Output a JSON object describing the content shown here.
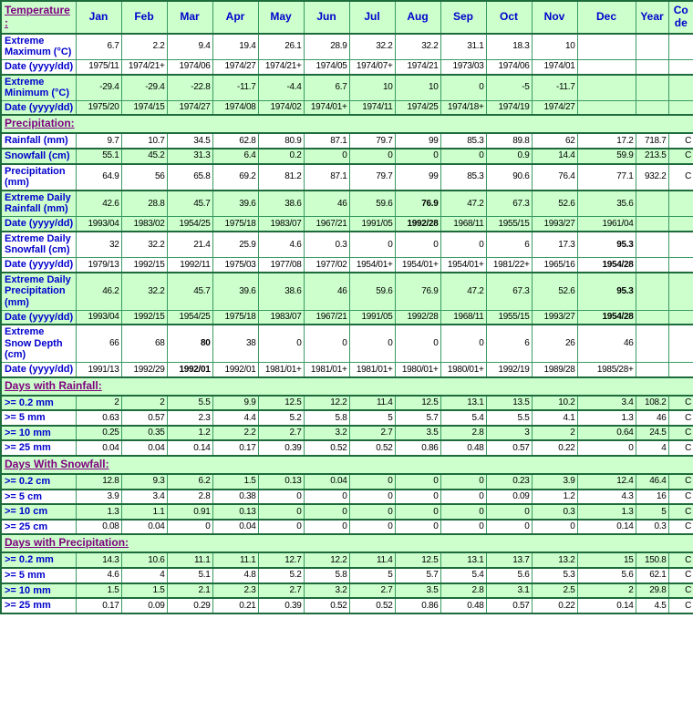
{
  "table": {
    "corner_label": "Temperature:",
    "columns": [
      "Jan",
      "Feb",
      "Mar",
      "Apr",
      "May",
      "Jun",
      "Jul",
      "Aug",
      "Sep",
      "Oct",
      "Nov",
      "Dec",
      "Year",
      "Code"
    ],
    "colors": {
      "grid": "#3a9a63",
      "section_border": "#1d6b3c",
      "row_shade_green": "#ccffcc",
      "label_blue": "#0000cc",
      "section_purple": "#800080"
    },
    "sections": [
      {
        "id": "temperature",
        "rows": [
          {
            "label": "Extreme Maximum (°C)",
            "shade": "white",
            "date_row": false,
            "bold": [],
            "values": [
              "6.7",
              "2.2",
              "9.4",
              "19.4",
              "26.1",
              "28.9",
              "32.2",
              "32.2",
              "31.1",
              "18.3",
              "10",
              "",
              "",
              ""
            ]
          },
          {
            "label": "Date (yyyy/dd)",
            "shade": "white",
            "date_row": true,
            "bold": [],
            "values": [
              "1975/11",
              "1974/21+",
              "1974/06",
              "1974/27",
              "1974/21+",
              "1974/05",
              "1974/07+",
              "1974/21",
              "1973/03",
              "1974/06",
              "1974/01",
              "",
              "",
              ""
            ]
          },
          {
            "label": "Extreme Minimum (°C)",
            "shade": "green",
            "date_row": false,
            "bold": [],
            "values": [
              "-29.4",
              "-29.4",
              "-22.8",
              "-11.7",
              "-4.4",
              "6.7",
              "10",
              "10",
              "0",
              "-5",
              "-11.7",
              "",
              "",
              ""
            ]
          },
          {
            "label": "Date (yyyy/dd)",
            "shade": "green",
            "date_row": true,
            "bold": [],
            "values": [
              "1975/20",
              "1974/15",
              "1974/27",
              "1974/08",
              "1974/02",
              "1974/01+",
              "1974/11",
              "1974/25",
              "1974/18+",
              "1974/19",
              "1974/27",
              "",
              "",
              ""
            ]
          }
        ]
      },
      {
        "id": "precipitation",
        "header": "Precipitation:",
        "rows": [
          {
            "label": "Rainfall (mm)",
            "shade": "white",
            "date_row": false,
            "bold": [],
            "values": [
              "9.7",
              "10.7",
              "34.5",
              "62.8",
              "80.9",
              "87.1",
              "79.7",
              "99",
              "85.3",
              "89.8",
              "62",
              "17.2",
              "718.7",
              "C"
            ]
          },
          {
            "label": "Snowfall (cm)",
            "shade": "green",
            "date_row": false,
            "bold": [],
            "values": [
              "55.1",
              "45.2",
              "31.3",
              "6.4",
              "0.2",
              "0",
              "0",
              "0",
              "0",
              "0.9",
              "14.4",
              "59.9",
              "213.5",
              "C"
            ]
          },
          {
            "label": "Precipitation (mm)",
            "shade": "white",
            "date_row": false,
            "bold": [],
            "values": [
              "64.9",
              "56",
              "65.8",
              "69.2",
              "81.2",
              "87.1",
              "79.7",
              "99",
              "85.3",
              "90.6",
              "76.4",
              "77.1",
              "932.2",
              "C"
            ]
          },
          {
            "label": "Extreme Daily Rainfall (mm)",
            "shade": "green",
            "date_row": false,
            "bold": [
              7
            ],
            "values": [
              "42.6",
              "28.8",
              "45.7",
              "39.6",
              "38.6",
              "46",
              "59.6",
              "76.9",
              "47.2",
              "67.3",
              "52.6",
              "35.6",
              "",
              ""
            ]
          },
          {
            "label": "Date (yyyy/dd)",
            "shade": "green",
            "date_row": true,
            "bold": [
              7
            ],
            "values": [
              "1993/04",
              "1983/02",
              "1954/25",
              "1975/18",
              "1983/07",
              "1967/21",
              "1991/05",
              "1992/28",
              "1968/11",
              "1955/15",
              "1993/27",
              "1961/04",
              "",
              ""
            ]
          },
          {
            "label": "Extreme Daily Snowfall (cm)",
            "shade": "white",
            "date_row": false,
            "bold": [
              11
            ],
            "values": [
              "32",
              "32.2",
              "21.4",
              "25.9",
              "4.6",
              "0.3",
              "0",
              "0",
              "0",
              "6",
              "17.3",
              "95.3",
              "",
              ""
            ]
          },
          {
            "label": "Date (yyyy/dd)",
            "shade": "white",
            "date_row": true,
            "bold": [
              11
            ],
            "values": [
              "1979/13",
              "1992/15",
              "1992/11",
              "1975/03",
              "1977/08",
              "1977/02",
              "1954/01+",
              "1954/01+",
              "1954/01+",
              "1981/22+",
              "1965/16",
              "1954/28",
              "",
              ""
            ]
          },
          {
            "label": "Extreme Daily Precipitation (mm)",
            "shade": "green",
            "date_row": false,
            "bold": [
              11
            ],
            "values": [
              "46.2",
              "32.2",
              "45.7",
              "39.6",
              "38.6",
              "46",
              "59.6",
              "76.9",
              "47.2",
              "67.3",
              "52.6",
              "95.3",
              "",
              ""
            ]
          },
          {
            "label": "Date (yyyy/dd)",
            "shade": "green",
            "date_row": true,
            "bold": [
              11
            ],
            "values": [
              "1993/04",
              "1992/15",
              "1954/25",
              "1975/18",
              "1983/07",
              "1967/21",
              "1991/05",
              "1992/28",
              "1968/11",
              "1955/15",
              "1993/27",
              "1954/28",
              "",
              ""
            ]
          },
          {
            "label": "Extreme Snow Depth (cm)",
            "shade": "white",
            "date_row": false,
            "bold": [
              2
            ],
            "values": [
              "66",
              "68",
              "80",
              "38",
              "0",
              "0",
              "0",
              "0",
              "0",
              "6",
              "26",
              "46",
              "",
              ""
            ]
          },
          {
            "label": "Date (yyyy/dd)",
            "shade": "white",
            "date_row": true,
            "bold": [
              2
            ],
            "values": [
              "1991/13",
              "1992/29",
              "1992/01",
              "1992/01",
              "1981/01+",
              "1981/01+",
              "1981/01+",
              "1980/01+",
              "1980/01+",
              "1992/19",
              "1989/28",
              "1985/28+",
              "",
              ""
            ]
          }
        ]
      },
      {
        "id": "days-with-rainfall",
        "header": "Days with Rainfall:",
        "rows": [
          {
            "label": ">= 0.2 mm",
            "shade": "green",
            "date_row": false,
            "bold": [],
            "values": [
              "2",
              "2",
              "5.5",
              "9.9",
              "12.5",
              "12.2",
              "11.4",
              "12.5",
              "13.1",
              "13.5",
              "10.2",
              "3.4",
              "108.2",
              "C"
            ]
          },
          {
            "label": ">= 5 mm",
            "shade": "white",
            "date_row": false,
            "bold": [],
            "values": [
              "0.63",
              "0.57",
              "2.3",
              "4.4",
              "5.2",
              "5.8",
              "5",
              "5.7",
              "5.4",
              "5.5",
              "4.1",
              "1.3",
              "46",
              "C"
            ]
          },
          {
            "label": ">= 10 mm",
            "shade": "green",
            "date_row": false,
            "bold": [],
            "values": [
              "0.25",
              "0.35",
              "1.2",
              "2.2",
              "2.7",
              "3.2",
              "2.7",
              "3.5",
              "2.8",
              "3",
              "2",
              "0.64",
              "24.5",
              "C"
            ]
          },
          {
            "label": ">= 25 mm",
            "shade": "white",
            "date_row": false,
            "bold": [],
            "values": [
              "0.04",
              "0.04",
              "0.14",
              "0.17",
              "0.39",
              "0.52",
              "0.52",
              "0.86",
              "0.48",
              "0.57",
              "0.22",
              "0",
              "4",
              "C"
            ]
          }
        ]
      },
      {
        "id": "days-with-snowfall",
        "header": "Days With Snowfall:",
        "rows": [
          {
            "label": ">= 0.2 cm",
            "shade": "green",
            "date_row": false,
            "bold": [],
            "values": [
              "12.8",
              "9.3",
              "6.2",
              "1.5",
              "0.13",
              "0.04",
              "0",
              "0",
              "0",
              "0.23",
              "3.9",
              "12.4",
              "46.4",
              "C"
            ]
          },
          {
            "label": ">= 5 cm",
            "shade": "white",
            "date_row": false,
            "bold": [],
            "values": [
              "3.9",
              "3.4",
              "2.8",
              "0.38",
              "0",
              "0",
              "0",
              "0",
              "0",
              "0.09",
              "1.2",
              "4.3",
              "16",
              "C"
            ]
          },
          {
            "label": ">= 10 cm",
            "shade": "green",
            "date_row": false,
            "bold": [],
            "values": [
              "1.3",
              "1.1",
              "0.91",
              "0.13",
              "0",
              "0",
              "0",
              "0",
              "0",
              "0",
              "0.3",
              "1.3",
              "5",
              "C"
            ]
          },
          {
            "label": ">= 25 cm",
            "shade": "white",
            "date_row": false,
            "bold": [],
            "values": [
              "0.08",
              "0.04",
              "0",
              "0.04",
              "0",
              "0",
              "0",
              "0",
              "0",
              "0",
              "0",
              "0.14",
              "0.3",
              "C"
            ]
          }
        ]
      },
      {
        "id": "days-with-precipitation",
        "header": "Days with Precipitation:",
        "rows": [
          {
            "label": ">= 0.2 mm",
            "shade": "green",
            "date_row": false,
            "bold": [],
            "values": [
              "14.3",
              "10.6",
              "11.1",
              "11.1",
              "12.7",
              "12.2",
              "11.4",
              "12.5",
              "13.1",
              "13.7",
              "13.2",
              "15",
              "150.8",
              "C"
            ]
          },
          {
            "label": ">= 5 mm",
            "shade": "white",
            "date_row": false,
            "bold": [],
            "values": [
              "4.6",
              "4",
              "5.1",
              "4.8",
              "5.2",
              "5.8",
              "5",
              "5.7",
              "5.4",
              "5.6",
              "5.3",
              "5.6",
              "62.1",
              "C"
            ]
          },
          {
            "label": ">= 10 mm",
            "shade": "green",
            "date_row": false,
            "bold": [],
            "values": [
              "1.5",
              "1.5",
              "2.1",
              "2.3",
              "2.7",
              "3.2",
              "2.7",
              "3.5",
              "2.8",
              "3.1",
              "2.5",
              "2",
              "29.8",
              "C"
            ]
          },
          {
            "label": ">= 25 mm",
            "shade": "white",
            "date_row": false,
            "bold": [],
            "values": [
              "0.17",
              "0.09",
              "0.29",
              "0.21",
              "0.39",
              "0.52",
              "0.52",
              "0.86",
              "0.48",
              "0.57",
              "0.22",
              "0.14",
              "4.5",
              "C"
            ]
          }
        ]
      }
    ]
  }
}
